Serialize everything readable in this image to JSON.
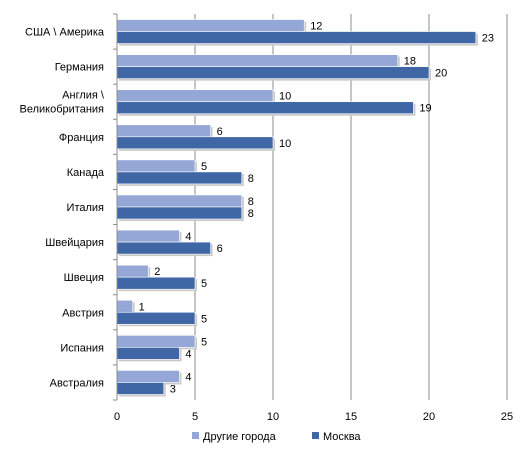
{
  "chart_data": {
    "type": "bar",
    "orientation": "horizontal",
    "categories": [
      [
        "США \\ Америка"
      ],
      [
        "Германия"
      ],
      [
        "Англия \\",
        "Великобритания"
      ],
      [
        "Франция"
      ],
      [
        "Канада"
      ],
      [
        "Италия"
      ],
      [
        "Швейцария"
      ],
      [
        "Швеция"
      ],
      [
        "Австрия"
      ],
      [
        "Испания"
      ],
      [
        "Австралия"
      ]
    ],
    "series": [
      {
        "name": "Другие города",
        "color": "#94a7d6",
        "values": [
          12,
          18,
          10,
          6,
          5,
          8,
          4,
          2,
          1,
          5,
          4
        ]
      },
      {
        "name": "Москва",
        "color": "#3f67a6",
        "values": [
          23,
          20,
          19,
          10,
          8,
          8,
          6,
          5,
          5,
          4,
          3
        ]
      }
    ],
    "xlim": [
      0,
      25
    ],
    "xticks": [
      0,
      5,
      10,
      15,
      20,
      25
    ],
    "grid": "vertical",
    "legend": "bottom"
  }
}
